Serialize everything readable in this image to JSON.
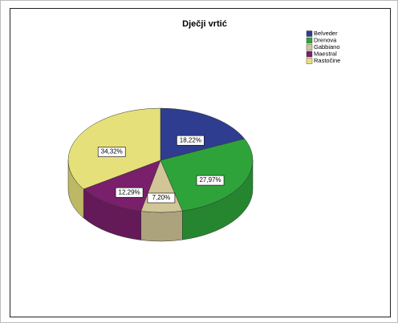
{
  "chart_data": {
    "type": "pie",
    "title": "Dječji vrtić",
    "categories": [
      "Belveder",
      "Drenova",
      "Gabbiano",
      "Maestral",
      "Rastočine"
    ],
    "values": [
      18.22,
      27.97,
      7.2,
      12.29,
      34.32
    ],
    "value_labels": [
      "18,22%",
      "27,97%",
      "7,20%",
      "12,29%",
      "34,32%"
    ],
    "colors": [
      "#2e3d8f",
      "#2ea33a",
      "#d2c597",
      "#7a1f6b",
      "#e6e07a"
    ],
    "legend": "top-right"
  }
}
